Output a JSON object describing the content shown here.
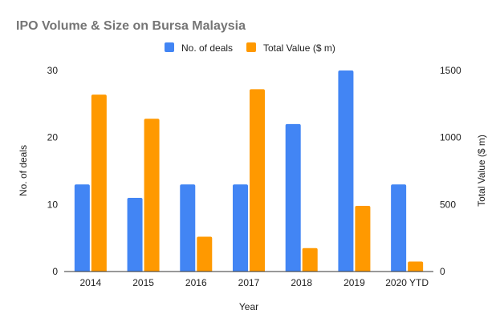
{
  "chart_data": {
    "type": "bar",
    "title": "IPO Volume & Size on Bursa Malaysia",
    "xlabel": "Year",
    "ylabel_left": "No. of deals",
    "ylabel_right": "Total Value ($ m)",
    "categories": [
      "2014",
      "2015",
      "2016",
      "2017",
      "2018",
      "2019",
      "2020 YTD"
    ],
    "ylim_left": [
      0,
      30
    ],
    "ylim_right": [
      0,
      1500
    ],
    "yticks_left": [
      "0",
      "10",
      "20",
      "30"
    ],
    "yticks_right": [
      "0",
      "500",
      "1000",
      "1500"
    ],
    "grid": false,
    "legend_position": "top",
    "series": [
      {
        "name": "No. of deals",
        "axis": "left",
        "color": "#4285F4",
        "values": [
          13,
          11,
          13,
          13,
          22,
          30,
          13
        ]
      },
      {
        "name": "Total Value ($ m)",
        "axis": "right",
        "color": "#FF9900",
        "values": [
          1320,
          1140,
          260,
          1360,
          175,
          490,
          75
        ]
      }
    ]
  }
}
